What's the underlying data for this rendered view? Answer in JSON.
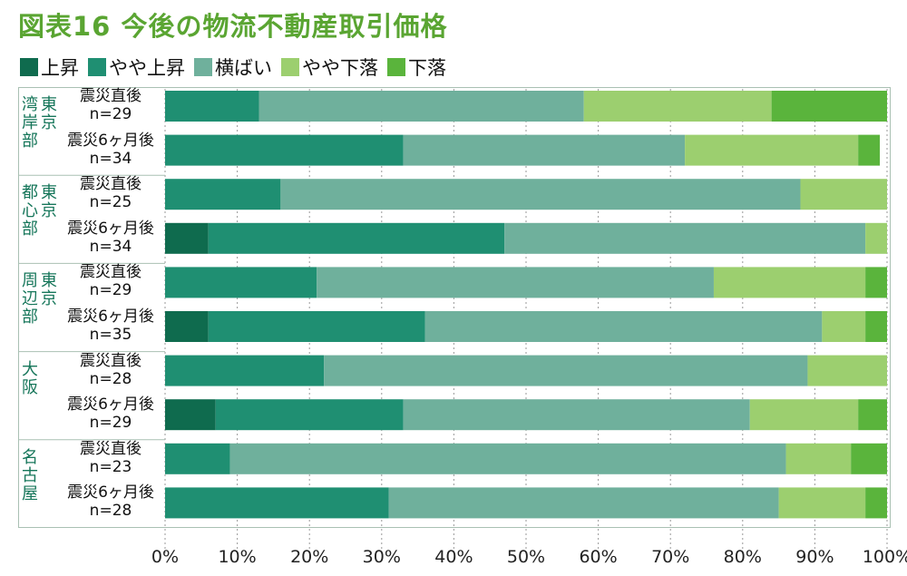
{
  "title": "図表16 今後の物流不動産取引価格",
  "legend": [
    {
      "label": "上昇",
      "color": "#0f6b4e"
    },
    {
      "label": "やや上昇",
      "color": "#1f8f72"
    },
    {
      "label": "横ばい",
      "color": "#6fb09c"
    },
    {
      "label": "やや下落",
      "color": "#9ccf6f"
    },
    {
      "label": "下落",
      "color": "#5ab43c"
    }
  ],
  "regions": [
    {
      "name": "東京湾岸部",
      "col1": "東京",
      "col2": "湾岸部"
    },
    {
      "name": "東京都心部",
      "col1": "東京",
      "col2": "都心部"
    },
    {
      "name": "東京周辺部",
      "col1": "東京",
      "col2": "周辺部"
    },
    {
      "name": "大阪",
      "col1": "",
      "col2": "大阪"
    },
    {
      "name": "名古屋",
      "col1": "",
      "col2": "名古屋"
    }
  ],
  "chart_data": {
    "type": "bar",
    "orientation": "horizontal",
    "stacked": true,
    "title": "図表16 今後の物流不動産取引価格",
    "xlim": [
      0,
      100
    ],
    "x_ticks": [
      "0%",
      "10%",
      "20%",
      "30%",
      "40%",
      "50%",
      "60%",
      "70%",
      "80%",
      "90%",
      "100%"
    ],
    "grid": "vertical dashed",
    "legend_position": "top",
    "categories": [
      {
        "region": "東京湾岸部",
        "label": "震災直後",
        "n": "n=29"
      },
      {
        "region": "東京湾岸部",
        "label": "震災6ヶ月後",
        "n": "n=34"
      },
      {
        "region": "東京都心部",
        "label": "震災直後",
        "n": "n=25"
      },
      {
        "region": "東京都心部",
        "label": "震災6ヶ月後",
        "n": "n=34"
      },
      {
        "region": "東京周辺部",
        "label": "震災直後",
        "n": "n=29"
      },
      {
        "region": "東京周辺部",
        "label": "震災6ヶ月後",
        "n": "n=35"
      },
      {
        "region": "大阪",
        "label": "震災直後",
        "n": "n=28"
      },
      {
        "region": "大阪",
        "label": "震災6ヶ月後",
        "n": "n=29"
      },
      {
        "region": "名古屋",
        "label": "震災直後",
        "n": "n=23"
      },
      {
        "region": "名古屋",
        "label": "震災6ヶ月後",
        "n": "n=28"
      }
    ],
    "series": [
      {
        "name": "上昇",
        "color": "#0f6b4e",
        "values": [
          0,
          0,
          0,
          6,
          0,
          6,
          0,
          7,
          0,
          0
        ]
      },
      {
        "name": "やや上昇",
        "color": "#1f8f72",
        "values": [
          13,
          33,
          16,
          41,
          21,
          30,
          22,
          26,
          9,
          31
        ]
      },
      {
        "name": "横ばい",
        "color": "#6fb09c",
        "values": [
          45,
          39,
          72,
          50,
          55,
          55,
          67,
          48,
          77,
          54
        ]
      },
      {
        "name": "やや下落",
        "color": "#9ccf6f",
        "values": [
          26,
          24,
          12,
          3,
          21,
          6,
          11,
          15,
          9,
          12
        ]
      },
      {
        "name": "下落",
        "color": "#5ab43c",
        "values": [
          16,
          3,
          0,
          0,
          3,
          3,
          0,
          4,
          5,
          3
        ]
      }
    ]
  }
}
